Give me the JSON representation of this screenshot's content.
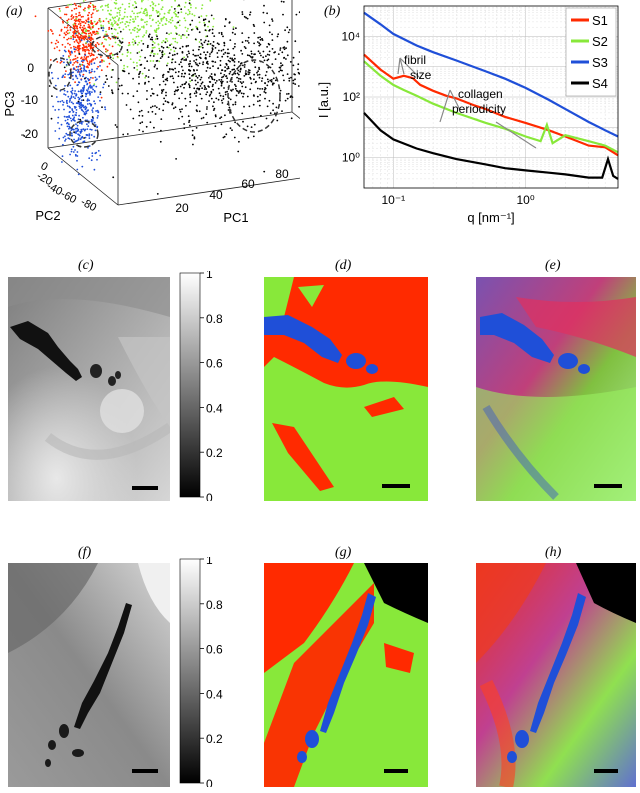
{
  "panel_labels": {
    "a": "(a)",
    "b": "(b)",
    "c": "(c)",
    "d": "(d)",
    "e": "(e)",
    "f": "(f)",
    "g": "(g)",
    "h": "(h)"
  },
  "colors": {
    "S1": "#ff2a00",
    "S2": "#88e83a",
    "S3": "#1f4fd8",
    "S4": "#000000",
    "scalebar": "#000000"
  },
  "colorbar_ticks": [
    "1",
    "0.8",
    "0.6",
    "0.4",
    "0.2",
    "0"
  ],
  "chart_data": [
    {
      "type": "scatter",
      "panel": "a",
      "axes": {
        "x": {
          "label": "PC1",
          "ticks": [
            "20",
            "40",
            "60",
            "80"
          ],
          "range": [
            10,
            90
          ]
        },
        "y": {
          "label": "PC2",
          "ticks": [
            "0",
            "-20",
            "-40",
            "-60",
            "-80"
          ],
          "range": [
            5,
            -90
          ]
        },
        "z": {
          "label": "PC3",
          "ticks": [
            "0",
            "-10",
            "-20"
          ],
          "range": [
            5,
            -25
          ]
        }
      },
      "series": [
        {
          "color": "#ff2a00",
          "clusters": [
            {
              "pc1": 18,
              "pc2": -10,
              "pc3": 0,
              "spread": [
                4,
                6,
                4
              ]
            }
          ]
        },
        {
          "color": "#88e83a",
          "clusters": [
            {
              "pc1": 35,
              "pc2": -20,
              "pc3": 4,
              "spread": [
                10,
                8,
                5
              ]
            }
          ]
        },
        {
          "color": "#1f4fd8",
          "clusters": [
            {
              "pc1": 18,
              "pc2": -5,
              "pc3": -15,
              "spread": [
                3,
                6,
                6
              ]
            }
          ]
        },
        {
          "color": "#000000",
          "clusters": [
            {
              "pc1": 55,
              "pc2": -40,
              "pc3": -8,
              "spread": [
                18,
                18,
                6
              ]
            }
          ]
        }
      ],
      "grid": true
    },
    {
      "type": "line",
      "panel": "b",
      "xlabel": "q [nm⁻¹]",
      "ylabel": "I [a.u.]",
      "xscale": "log",
      "yscale": "log",
      "xlim": [
        0.06,
        5.0
      ],
      "ylim": [
        0.1,
        100000
      ],
      "xticks": [
        "10⁻¹",
        "10⁰"
      ],
      "yticks": [
        "10⁰",
        "10²",
        "10⁴"
      ],
      "legend": {
        "placement": "top-right",
        "entries": [
          "S1",
          "S2",
          "S3",
          "S4"
        ]
      },
      "annotations": [
        "fibril size",
        "collagen periodicity"
      ],
      "series": [
        {
          "name": "S1",
          "color": "#ff2a00",
          "x": [
            0.06,
            0.08,
            0.1,
            0.12,
            0.14,
            0.16,
            0.2,
            0.25,
            0.3,
            0.4,
            0.5,
            0.7,
            1.0,
            1.5,
            2.0,
            3.0,
            4.0,
            5.0
          ],
          "y": [
            2500,
            800,
            400,
            500,
            420,
            250,
            160,
            110,
            90,
            55,
            40,
            22,
            14,
            8,
            5,
            2.5,
            2.2,
            1.2
          ]
        },
        {
          "name": "S2",
          "color": "#88e83a",
          "x": [
            0.06,
            0.08,
            0.1,
            0.12,
            0.15,
            0.2,
            0.3,
            0.5,
            0.7,
            1.0,
            1.3,
            1.45,
            1.6,
            2.0,
            3.0,
            4.0,
            5.0
          ],
          "y": [
            1500,
            500,
            250,
            170,
            110,
            60,
            30,
            14,
            9,
            5,
            3.5,
            12,
            3,
            5.5,
            3.5,
            2.5,
            1.5
          ]
        },
        {
          "name": "S3",
          "color": "#1f4fd8",
          "x": [
            0.06,
            0.08,
            0.1,
            0.15,
            0.2,
            0.3,
            0.5,
            0.7,
            1.0,
            1.5,
            2.0,
            3.0,
            4.0,
            5.0
          ],
          "y": [
            60000,
            25000,
            12000,
            5000,
            3000,
            1600,
            700,
            400,
            200,
            80,
            40,
            15,
            8,
            5
          ]
        },
        {
          "name": "S4",
          "color": "#000000",
          "x": [
            0.06,
            0.08,
            0.1,
            0.15,
            0.2,
            0.3,
            0.5,
            0.7,
            1.0,
            1.5,
            2.0,
            3.0,
            3.8,
            4.2,
            4.6,
            5.0
          ],
          "y": [
            30,
            8,
            4,
            2,
            1.4,
            0.9,
            0.6,
            0.45,
            0.38,
            0.32,
            0.28,
            0.22,
            0.22,
            0.9,
            0.25,
            0.2
          ]
        }
      ]
    }
  ]
}
